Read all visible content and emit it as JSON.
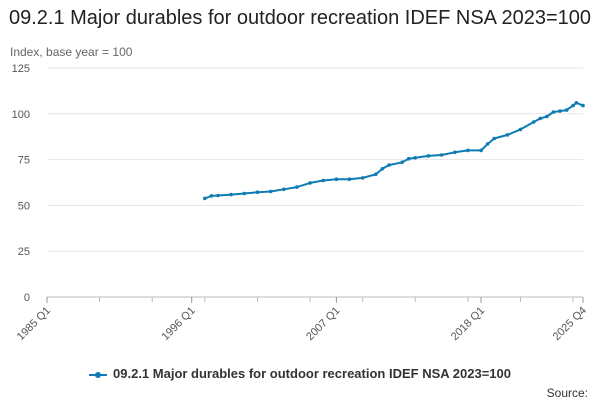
{
  "chart_data": {
    "type": "line",
    "title": "09.2.1 Major durables for outdoor recreation IDEF NSA 2023=100",
    "ylabel": "Index, base year = 100",
    "xlabel": "",
    "ylim": [
      0,
      125
    ],
    "yticks": [
      0,
      25,
      50,
      75,
      100,
      125
    ],
    "xticks": [
      "1985 Q1",
      "1996 Q1",
      "2007 Q1",
      "2018 Q1",
      "2025 Q4"
    ],
    "x_range": [
      "1985 Q1",
      "2025 Q4"
    ],
    "grid": true,
    "legend_position": "bottom",
    "source_label": "Source:",
    "color": "#0f7bb3",
    "series": [
      {
        "name": "09.2.1 Major durables for outdoor recreation IDEF NSA 2023=100",
        "points": [
          {
            "x": "1997 Q1",
            "y": 53.8
          },
          {
            "x": "1997 Q3",
            "y": 55.2
          },
          {
            "x": "1998 Q1",
            "y": 55.4
          },
          {
            "x": "1999 Q1",
            "y": 55.9
          },
          {
            "x": "2000 Q1",
            "y": 56.5
          },
          {
            "x": "2001 Q1",
            "y": 57.2
          },
          {
            "x": "2002 Q1",
            "y": 57.6
          },
          {
            "x": "2003 Q1",
            "y": 58.8
          },
          {
            "x": "2004 Q1",
            "y": 60.0
          },
          {
            "x": "2005 Q1",
            "y": 62.3
          },
          {
            "x": "2006 Q1",
            "y": 63.6
          },
          {
            "x": "2007 Q1",
            "y": 64.3
          },
          {
            "x": "2008 Q1",
            "y": 64.3
          },
          {
            "x": "2009 Q1",
            "y": 65.0
          },
          {
            "x": "2010 Q1",
            "y": 67.0
          },
          {
            "x": "2010 Q3",
            "y": 70.0
          },
          {
            "x": "2011 Q1",
            "y": 72.0
          },
          {
            "x": "2012 Q1",
            "y": 73.5
          },
          {
            "x": "2012 Q3",
            "y": 75.5
          },
          {
            "x": "2013 Q1",
            "y": 76.0
          },
          {
            "x": "2014 Q1",
            "y": 77.0
          },
          {
            "x": "2015 Q1",
            "y": 77.5
          },
          {
            "x": "2016 Q1",
            "y": 79.0
          },
          {
            "x": "2017 Q1",
            "y": 80.0
          },
          {
            "x": "2018 Q1",
            "y": 80.0
          },
          {
            "x": "2018 Q3",
            "y": 83.5
          },
          {
            "x": "2019 Q1",
            "y": 86.5
          },
          {
            "x": "2020 Q1",
            "y": 88.5
          },
          {
            "x": "2021 Q1",
            "y": 91.5
          },
          {
            "x": "2022 Q1",
            "y": 95.5
          },
          {
            "x": "2022 Q3",
            "y": 97.5
          },
          {
            "x": "2023 Q1",
            "y": 98.5
          },
          {
            "x": "2023 Q3",
            "y": 101.0
          },
          {
            "x": "2024 Q1",
            "y": 101.5
          },
          {
            "x": "2024 Q3",
            "y": 102.0
          },
          {
            "x": "2025 Q1",
            "y": 104.5
          },
          {
            "x": "2025 Q2",
            "y": 106.0
          },
          {
            "x": "2025 Q4",
            "y": 104.5
          }
        ]
      }
    ]
  }
}
